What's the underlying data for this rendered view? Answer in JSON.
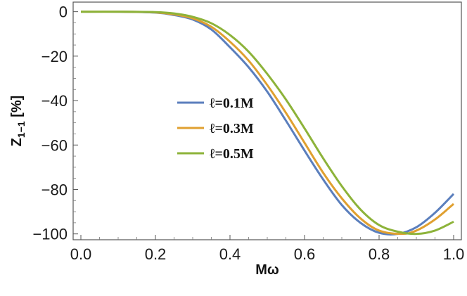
{
  "chart_data": {
    "type": "line",
    "xlabel": "Mω",
    "ylabel": "Z",
    "ylabel_sub": "1−1",
    "ylabel_unit": " [%]",
    "xlim": [
      0,
      1
    ],
    "ylim": [
      -102,
      4
    ],
    "xticks": [
      0.0,
      0.2,
      0.4,
      0.6,
      0.8,
      1.0
    ],
    "xtick_labels": [
      "0.0",
      "0.2",
      "0.4",
      "0.6",
      "0.8",
      "1.0"
    ],
    "yticks": [
      0,
      -20,
      -40,
      -60,
      -80,
      -100
    ],
    "ytick_labels": [
      "0",
      "−20",
      "−40",
      "−60",
      "−80",
      "−100"
    ],
    "grid": false,
    "legend_position": "center-left",
    "series": [
      {
        "name": "ℓ=0.1M",
        "color": "#5b7fbd",
        "x": [
          0.0,
          0.1,
          0.2,
          0.25,
          0.3,
          0.35,
          0.4,
          0.45,
          0.5,
          0.55,
          0.6,
          0.65,
          0.7,
          0.75,
          0.8,
          0.85,
          0.9,
          0.95,
          1.0
        ],
        "y": [
          0,
          0,
          -0.4,
          -1.5,
          -3.5,
          -8,
          -16,
          -25,
          -36,
          -49,
          -62.5,
          -75.5,
          -87,
          -95,
          -99.5,
          -100,
          -97,
          -90.5,
          -82
        ]
      },
      {
        "name": "ℓ=0.3M",
        "color": "#e0a030",
        "x": [
          0.0,
          0.1,
          0.2,
          0.25,
          0.3,
          0.35,
          0.4,
          0.45,
          0.5,
          0.55,
          0.6,
          0.65,
          0.7,
          0.75,
          0.8,
          0.86,
          0.9,
          0.95,
          1.0
        ],
        "y": [
          0,
          0,
          -0.3,
          -1.2,
          -3,
          -6.8,
          -13.5,
          -22,
          -33,
          -45.5,
          -59,
          -72.5,
          -84,
          -93,
          -98.5,
          -100,
          -98.5,
          -93.5,
          -86.5
        ]
      },
      {
        "name": "ℓ=0.5M",
        "color": "#8db33a",
        "x": [
          0.0,
          0.1,
          0.2,
          0.25,
          0.3,
          0.35,
          0.4,
          0.45,
          0.5,
          0.55,
          0.6,
          0.65,
          0.7,
          0.75,
          0.8,
          0.85,
          0.9,
          0.95,
          1.0
        ],
        "y": [
          0,
          0,
          -0.2,
          -0.8,
          -2.3,
          -5.2,
          -10.5,
          -18,
          -28,
          -39.5,
          -52.5,
          -66,
          -78.5,
          -89,
          -96,
          -99,
          -100,
          -98.5,
          -94.5
        ]
      }
    ]
  }
}
